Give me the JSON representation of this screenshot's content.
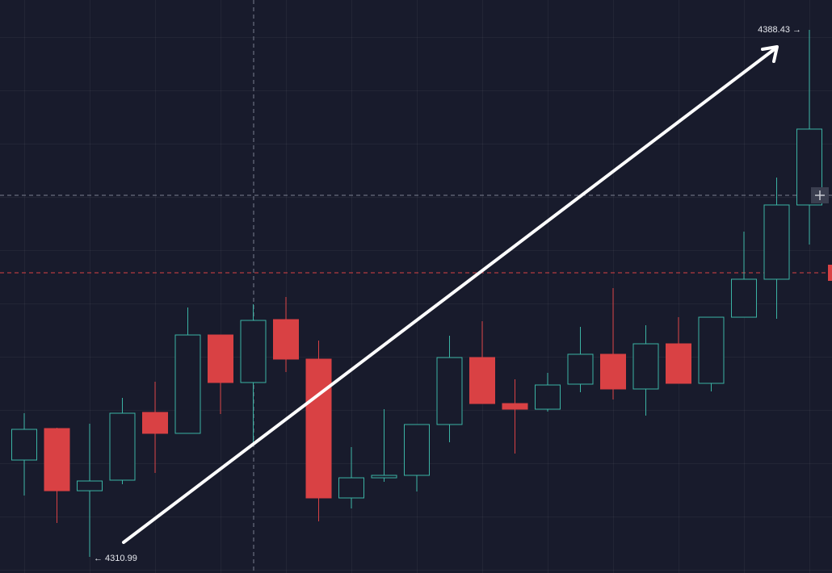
{
  "chart_data": {
    "type": "candlestick",
    "up_color": "#3bb3a4",
    "down_color": "#d94144",
    "ylim": [
      4308.62,
      4392.82
    ],
    "open": [
      4325.22,
      4329.85,
      4320.71,
      4322.26,
      4332.22,
      4329.14,
      4343.6,
      4336.61,
      4345.86,
      4340.05,
      4319.65,
      4322.61,
      4322.97,
      4330.44,
      4340.28,
      4333.52,
      4332.69,
      4336.37,
      4340.76,
      4335.66,
      4342.3,
      4336.49,
      4346.21,
      4351.79,
      4362.7
    ],
    "high": [
      4332.1,
      4329.97,
      4330.56,
      4334.35,
      4336.73,
      4347.64,
      4343.6,
      4348.11,
      4349.18,
      4342.77,
      4327.12,
      4332.69,
      4330.44,
      4343.49,
      4345.62,
      4337.08,
      4338.03,
      4344.79,
      4350.48,
      4345.03,
      4346.21,
      4346.21,
      4358.78,
      4366.73,
      4388.43
    ],
    "low": [
      4320.0,
      4315.97,
      4310.99,
      4321.66,
      4323.32,
      4329.14,
      4331.98,
      4327.83,
      4338.15,
      4316.21,
      4318.11,
      4322.02,
      4320.6,
      4327.83,
      4333.52,
      4326.17,
      4332.34,
      4335.18,
      4334.12,
      4331.74,
      4336.49,
      4335.3,
      4346.21,
      4345.98,
      4356.89
    ],
    "close": [
      4329.73,
      4320.71,
      4322.14,
      4332.1,
      4329.14,
      4343.6,
      4336.61,
      4345.74,
      4340.05,
      4319.65,
      4322.61,
      4322.97,
      4330.44,
      4340.28,
      4333.52,
      4332.69,
      4336.25,
      4340.76,
      4335.66,
      4342.3,
      4336.49,
      4346.21,
      4351.79,
      4362.7,
      4373.85
    ],
    "high_label": "4388.43 →",
    "low_label": "← 4310.99"
  }
}
